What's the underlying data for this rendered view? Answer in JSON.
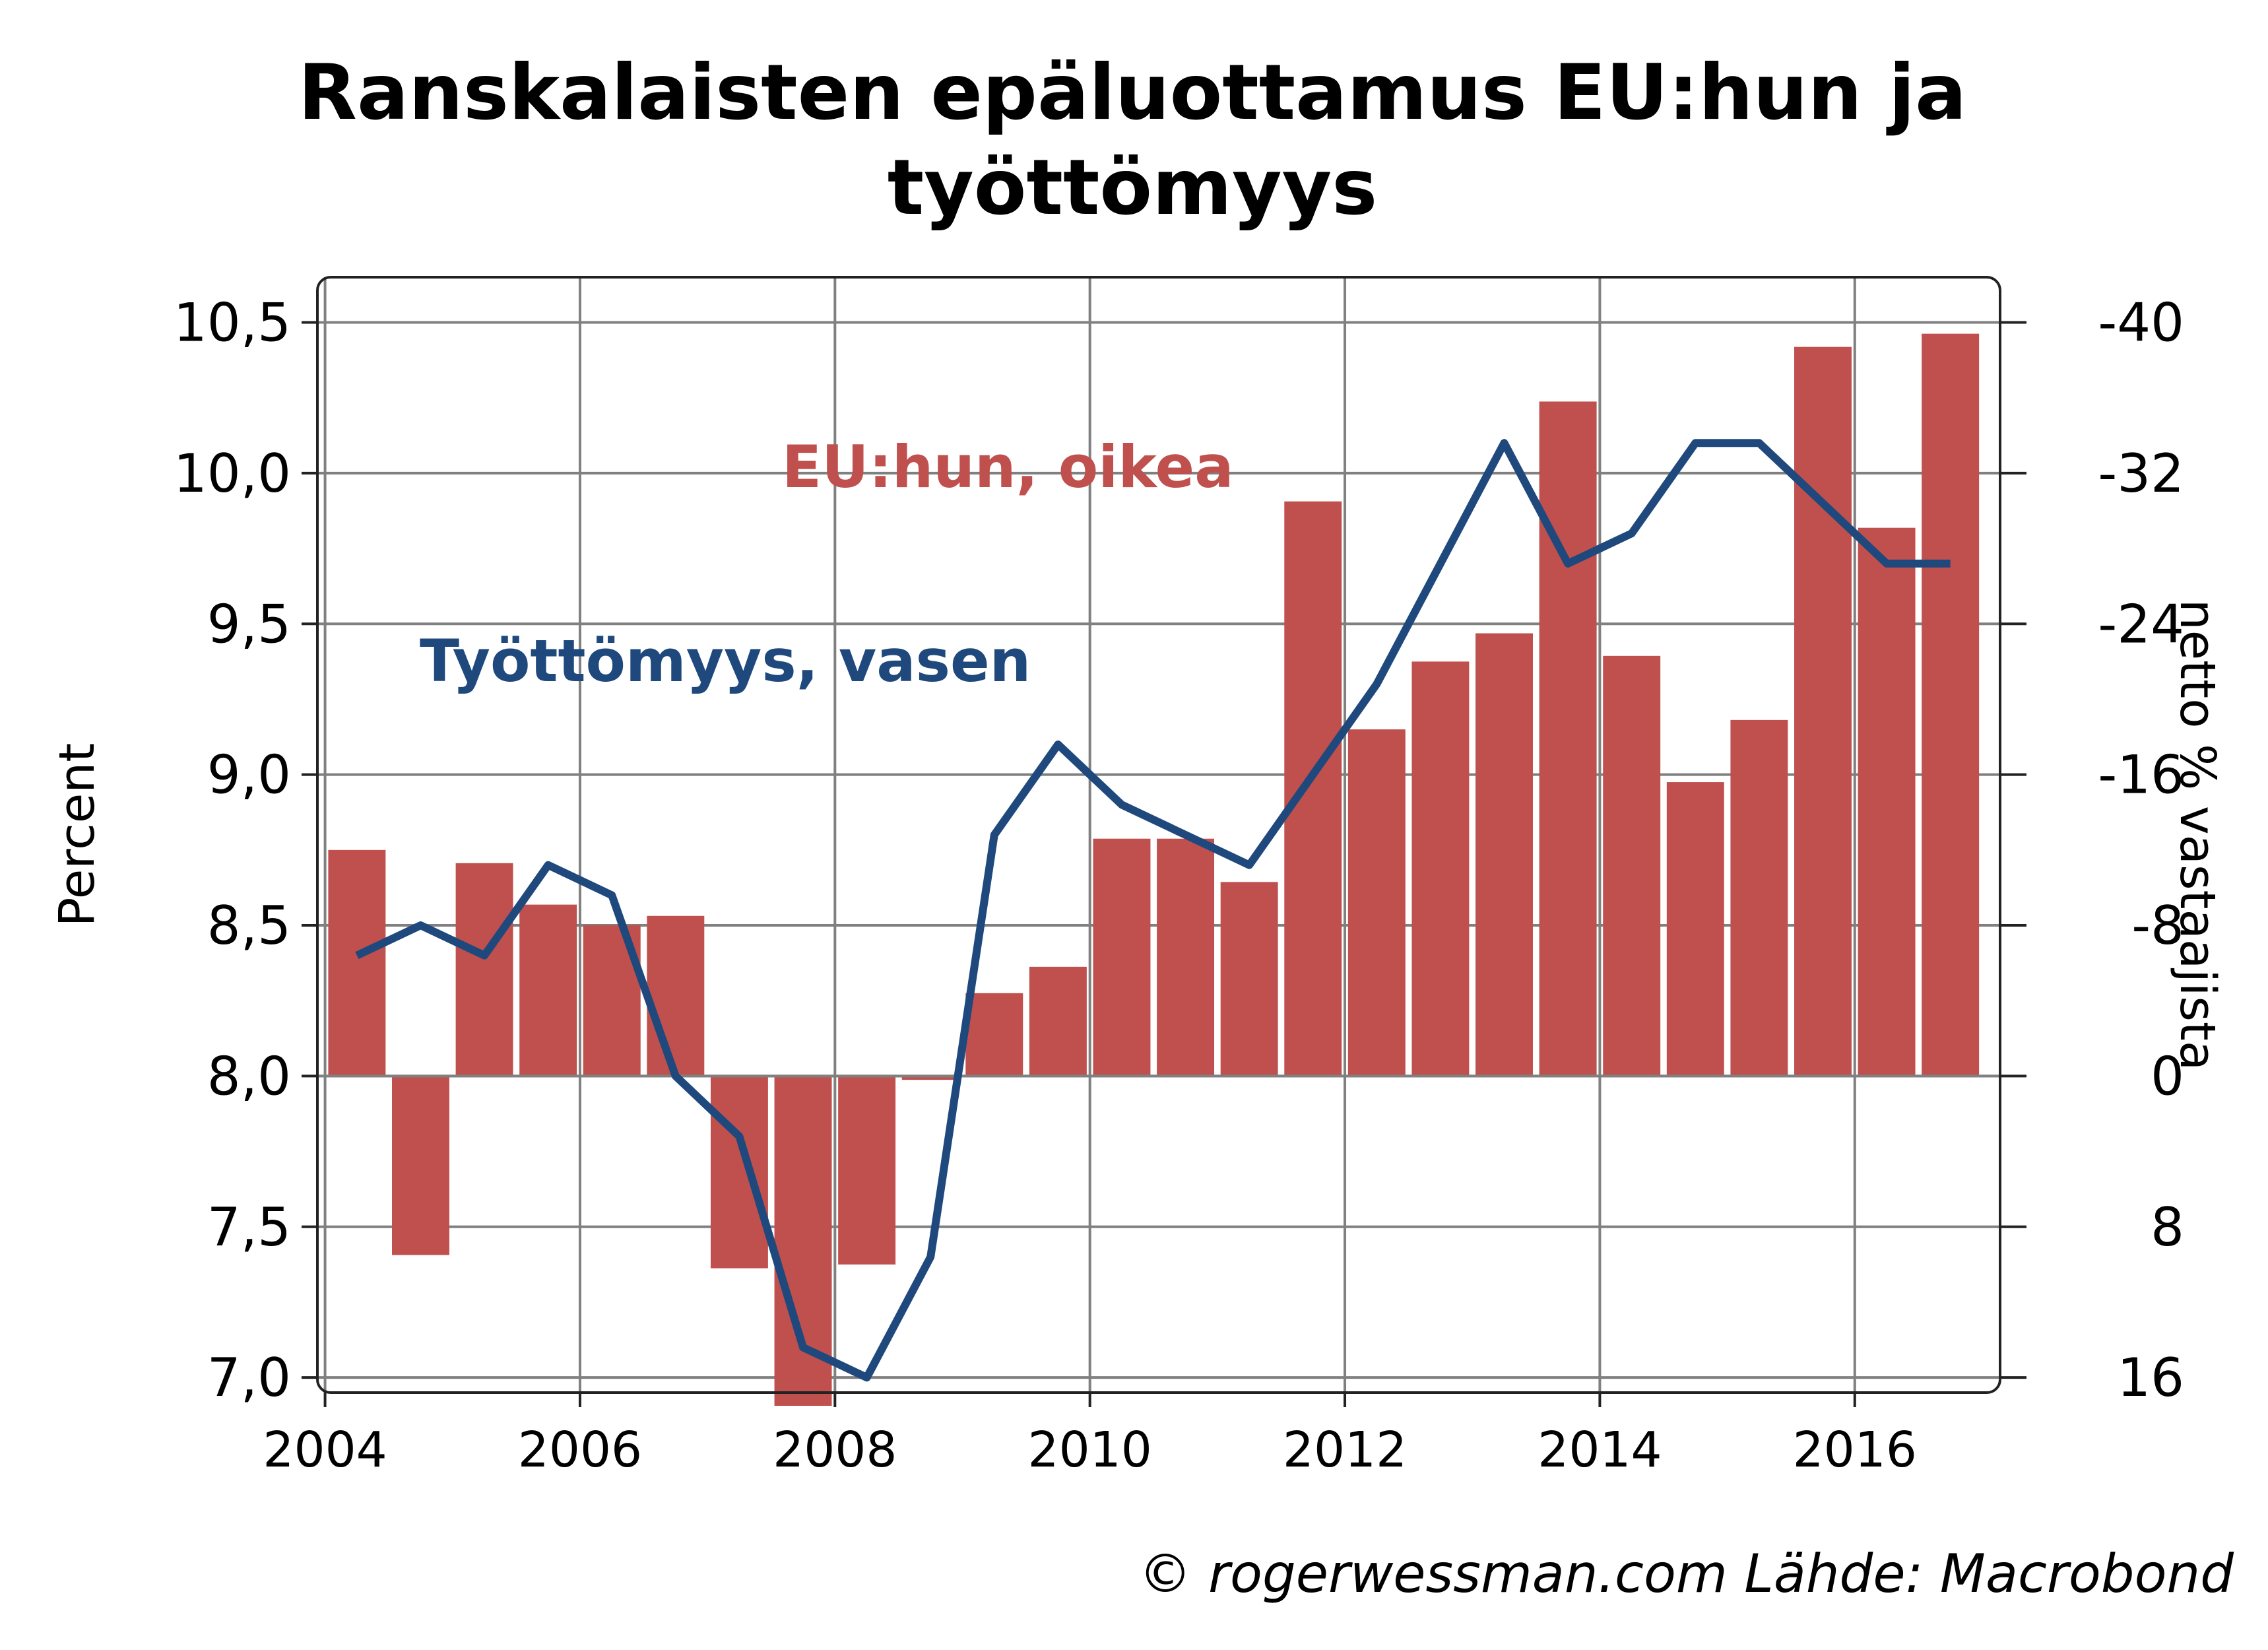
{
  "chart_data": {
    "type": "bar+line",
    "title_lines": [
      "Ranskalaisten epäluottamus EU:hun ja",
      "työttömyys"
    ],
    "ylabel_left": "Percent",
    "ylabel_right": "netto % vastaajista",
    "x_ticks": [
      "2004",
      "2006",
      "2008",
      "2010",
      "2012",
      "2014",
      "2016"
    ],
    "left_ticks": [
      "7,0",
      "7,5",
      "8,0",
      "8,5",
      "9,0",
      "9,5",
      "10,0",
      "10,5"
    ],
    "right_ticks": [
      "16",
      "8",
      "0",
      "-8",
      "-16",
      "-24",
      "-32",
      "-40"
    ],
    "ylim_left": [
      6.95,
      10.65
    ],
    "ylim_right": [
      16.8,
      -42.4
    ],
    "right_axis_inverted": true,
    "grid": true,
    "source": "© rogerwessman.com Lähde: Macrobond",
    "series": [
      {
        "name": "EU:hun, oikea",
        "type": "bar",
        "axis": "right",
        "color": "#c0504d",
        "x": [
          2004.25,
          2004.75,
          2005.25,
          2005.75,
          2006.25,
          2006.75,
          2007.25,
          2007.75,
          2008.25,
          2008.75,
          2009.25,
          2009.75,
          2010.25,
          2010.75,
          2011.25,
          2011.75,
          2012.25,
          2012.75,
          2013.25,
          2013.75,
          2014.25,
          2014.75,
          2015.25,
          2015.75,
          2016.25,
          2016.75
        ],
        "values": [
          -12,
          9.5,
          -11.3,
          -9.1,
          -8,
          -8.5,
          10.2,
          17.5,
          10,
          0.2,
          -4.4,
          -5.8,
          -12.6,
          -12.6,
          -10.3,
          -30.5,
          -18.4,
          -22,
          -23.5,
          -35.8,
          -22.3,
          -15.6,
          -18.9,
          -38.7,
          -29.1,
          -39.4
        ]
      },
      {
        "name": "Työttömyys, vasen",
        "type": "line",
        "axis": "left",
        "color": "#1f497d",
        "x": [
          2004.25,
          2004.75,
          2005.25,
          2005.75,
          2006.25,
          2006.75,
          2007.25,
          2007.75,
          2008.25,
          2008.75,
          2009.25,
          2009.75,
          2010.25,
          2010.75,
          2011.25,
          2011.75,
          2012.25,
          2012.75,
          2013.25,
          2013.75,
          2014.25,
          2014.75,
          2015.25,
          2015.75,
          2016.25,
          2016.75
        ],
        "values": [
          8.4,
          8.5,
          8.4,
          8.7,
          8.6,
          8.0,
          7.8,
          7.1,
          7.0,
          7.4,
          8.8,
          9.1,
          8.9,
          8.8,
          8.7,
          9.0,
          9.3,
          9.7,
          10.1,
          9.7,
          9.8,
          10.1,
          10.1,
          9.9,
          9.7,
          9.7
        ]
      }
    ]
  }
}
